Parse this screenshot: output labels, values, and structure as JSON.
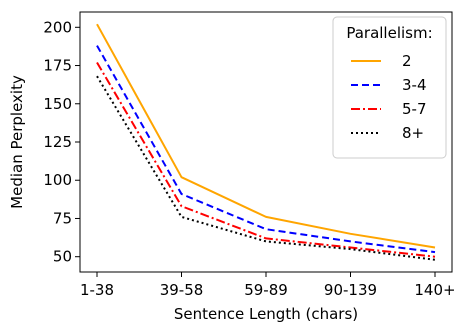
{
  "chart_data": {
    "type": "line",
    "title": "",
    "xlabel": "Sentence Length (chars)",
    "ylabel": "Median Perplexity",
    "categories": [
      "1-38",
      "39-58",
      "59-89",
      "90-139",
      "140+"
    ],
    "ylim": [
      40,
      210
    ],
    "yticks": [
      50,
      75,
      100,
      125,
      150,
      175,
      200
    ],
    "grid": false,
    "legend": {
      "title": "Parallelism:",
      "placement": "top-right"
    },
    "series": [
      {
        "name": "2",
        "values": [
          202,
          102,
          76,
          65,
          56
        ],
        "color": "#ffa500",
        "style": "solid"
      },
      {
        "name": "3-4",
        "values": [
          188,
          91,
          68,
          60,
          53
        ],
        "color": "#0000ff",
        "style": "dashed"
      },
      {
        "name": "5-7",
        "values": [
          177,
          83,
          62,
          56,
          50
        ],
        "color": "#ff0000",
        "style": "dashdot"
      },
      {
        "name": "8+",
        "values": [
          168,
          76,
          60,
          55,
          48
        ],
        "color": "#000000",
        "style": "dotted"
      }
    ]
  }
}
